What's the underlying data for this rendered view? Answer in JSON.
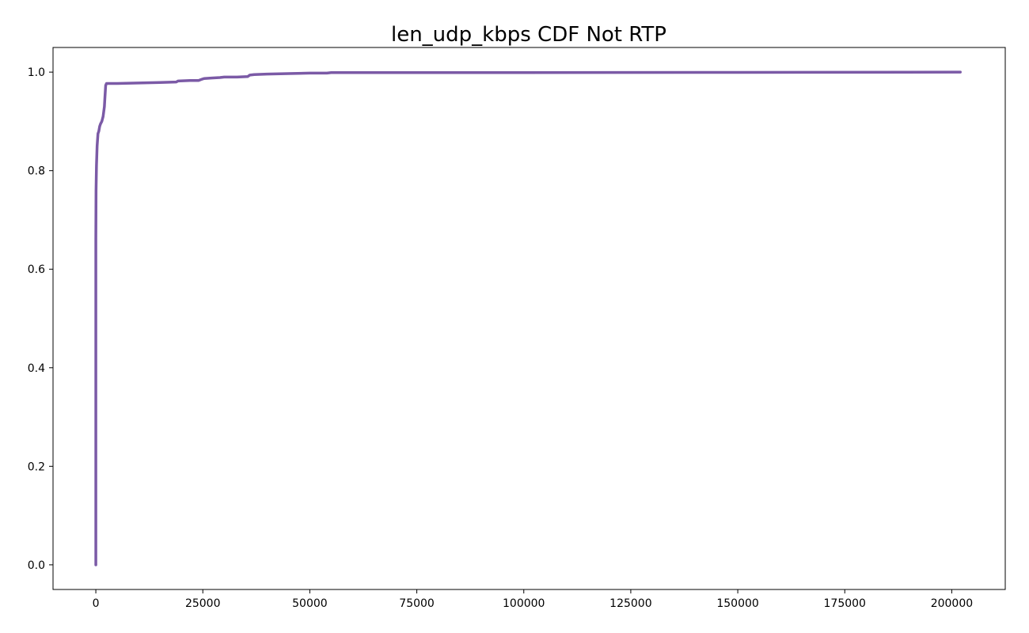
{
  "chart_data": {
    "type": "line",
    "title": "len_udp_kbps CDF Not RTP",
    "xlabel": "",
    "ylabel": "",
    "xlim": [
      -10000,
      212500
    ],
    "ylim": [
      -0.05,
      1.05
    ],
    "x_ticks": [
      0,
      25000,
      50000,
      75000,
      100000,
      125000,
      150000,
      175000,
      200000
    ],
    "x_tick_labels": [
      "0",
      "25000",
      "50000",
      "75000",
      "100000",
      "125000",
      "150000",
      "175000",
      "200000"
    ],
    "y_ticks": [
      0.0,
      0.2,
      0.4,
      0.6,
      0.8,
      1.0
    ],
    "y_tick_labels": [
      "0.0",
      "0.2",
      "0.4",
      "0.6",
      "0.8",
      "1.0"
    ],
    "grid": false,
    "series": [
      {
        "color": "#7b5aa6",
        "x": [
          0,
          0,
          0,
          0,
          50,
          150,
          300,
          500,
          700,
          900,
          1100,
          1400,
          1700,
          2000,
          2100,
          2300,
          2500,
          3000,
          5000,
          10000,
          15000,
          18800,
          19200,
          22000,
          24000,
          24600,
          25300,
          27000,
          29000,
          30000,
          33000,
          35500,
          36000,
          37000,
          40000,
          45000,
          50000,
          54000,
          55000,
          75000,
          100000,
          150000,
          202000
        ],
        "y": [
          0.0,
          0.4,
          0.6,
          0.66,
          0.76,
          0.81,
          0.85,
          0.875,
          0.88,
          0.89,
          0.895,
          0.9,
          0.91,
          0.93,
          0.945,
          0.973,
          0.977,
          0.977,
          0.977,
          0.978,
          0.979,
          0.98,
          0.982,
          0.983,
          0.983,
          0.985,
          0.987,
          0.988,
          0.989,
          0.99,
          0.99,
          0.991,
          0.994,
          0.995,
          0.996,
          0.997,
          0.998,
          0.998,
          0.999,
          0.999,
          0.999,
          0.9995,
          1.0
        ]
      }
    ]
  }
}
